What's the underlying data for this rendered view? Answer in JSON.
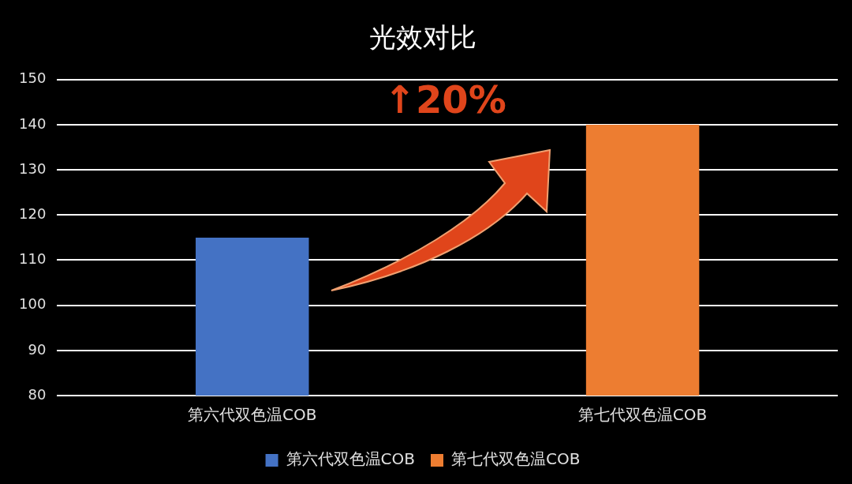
{
  "chart_data": {
    "type": "bar",
    "title": "光效对比",
    "categories": [
      "第六代双色温COB",
      "第七代双色温COB"
    ],
    "series": [
      {
        "name": "第六代双色温COB",
        "color": "#4472c4",
        "values": [
          115,
          null
        ]
      },
      {
        "name": "第七代双色温COB",
        "color": "#ed7d31",
        "values": [
          null,
          140
        ]
      }
    ],
    "ylim": [
      80,
      150
    ],
    "yticks": [
      80,
      90,
      100,
      110,
      120,
      130,
      140,
      150
    ],
    "grid": "y",
    "legend": "bottom",
    "annotations": [
      "↑20%"
    ]
  }
}
